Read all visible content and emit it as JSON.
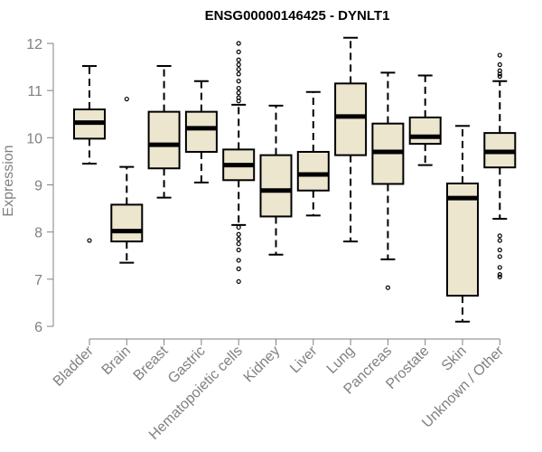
{
  "chart_data": {
    "type": "boxplot",
    "title": "ENSG00000146425 - DYNLT1",
    "xlabel": "",
    "ylabel": "Expression",
    "ylim": [
      6,
      12
    ],
    "yticks": [
      6,
      7,
      8,
      9,
      10,
      11,
      12
    ],
    "box_color": "#EDE6CF",
    "categories": [
      "Bladder",
      "Brain",
      "Breast",
      "Gastric",
      "Hematopoietic cells",
      "Kidney",
      "Liver",
      "Lung",
      "Pancreas",
      "Prostate",
      "Skin",
      "Unknown / Other"
    ],
    "boxes": [
      {
        "whisker_low": 9.45,
        "q1": 9.98,
        "median": 10.32,
        "q3": 10.6,
        "whisker_high": 11.52,
        "outliers": [
          7.82
        ]
      },
      {
        "whisker_low": 7.35,
        "q1": 7.8,
        "median": 8.02,
        "q3": 8.58,
        "whisker_high": 9.38,
        "outliers": [
          10.82
        ]
      },
      {
        "whisker_low": 8.73,
        "q1": 9.35,
        "median": 9.85,
        "q3": 10.55,
        "whisker_high": 11.52,
        "outliers": []
      },
      {
        "whisker_low": 9.05,
        "q1": 9.7,
        "median": 10.2,
        "q3": 10.55,
        "whisker_high": 11.2,
        "outliers": []
      },
      {
        "whisker_low": 8.15,
        "q1": 9.1,
        "median": 9.42,
        "q3": 9.75,
        "whisker_high": 10.7,
        "outliers": [
          12.0,
          11.82,
          11.65,
          11.55,
          11.45,
          11.35,
          11.2,
          11.05,
          10.95,
          10.85,
          10.78,
          8.1,
          7.95,
          7.85,
          7.75,
          7.62,
          7.4,
          7.22,
          6.95
        ]
      },
      {
        "whisker_low": 7.52,
        "q1": 8.33,
        "median": 8.88,
        "q3": 9.63,
        "whisker_high": 10.68,
        "outliers": []
      },
      {
        "whisker_low": 8.35,
        "q1": 8.88,
        "median": 9.22,
        "q3": 9.7,
        "whisker_high": 10.97,
        "outliers": []
      },
      {
        "whisker_low": 7.8,
        "q1": 9.63,
        "median": 10.45,
        "q3": 11.15,
        "whisker_high": 12.12,
        "outliers": []
      },
      {
        "whisker_low": 7.42,
        "q1": 9.02,
        "median": 9.7,
        "q3": 10.3,
        "whisker_high": 11.38,
        "outliers": [
          6.82
        ]
      },
      {
        "whisker_low": 9.42,
        "q1": 9.87,
        "median": 10.02,
        "q3": 10.43,
        "whisker_high": 11.32,
        "outliers": []
      },
      {
        "whisker_low": 6.1,
        "q1": 6.65,
        "median": 8.72,
        "q3": 9.03,
        "whisker_high": 10.25,
        "outliers": []
      },
      {
        "whisker_low": 8.28,
        "q1": 9.37,
        "median": 9.7,
        "q3": 10.1,
        "whisker_high": 11.2,
        "outliers": [
          11.75,
          11.55,
          11.42,
          11.35,
          11.3,
          7.92,
          7.82,
          7.62,
          7.48,
          7.25,
          7.1,
          7.05
        ]
      }
    ]
  }
}
